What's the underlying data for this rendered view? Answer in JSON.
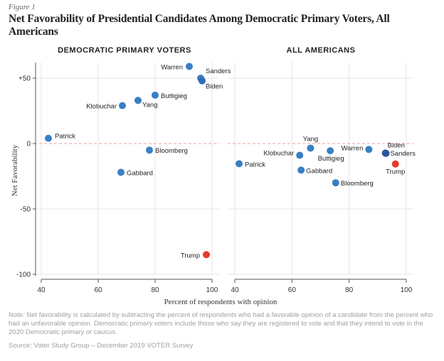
{
  "figure_label": "Figure 1",
  "title": "Net Favorability of Presidential Candidates Among Democratic Primary Voters, All Americans",
  "note": "Note: Net favorability is calculated by subtracting the percent of respondents who had a favorable opinion of a candidate from the percent who had an unfavorable opinion. Democratic primary voters include those who say they are registered to vote and that they intend to vote in the 2020 Democratic primary or caucus.",
  "source": "Source: Voter Study Group – December 2019 VOTER Survey",
  "colors": {
    "democrat": "#3a7fc4",
    "highlight": "#2a55a0",
    "trump": "#e53a2c",
    "zero_line": "#e8a09a"
  },
  "chart_data": [
    {
      "type": "scatter",
      "title": "DEMOCRATIC PRIMARY VOTERS",
      "xlabel": "Percent of respondents with opinion",
      "ylabel": "Net Favorability",
      "xlim": [
        40,
        100
      ],
      "ylim": [
        -100,
        60
      ],
      "xticks": [
        "40",
        "60",
        "80",
        "100"
      ],
      "yticks": [
        "+50",
        "0",
        "-50",
        "-100"
      ],
      "grid": true,
      "points": [
        {
          "name": "Warren",
          "x": 92,
          "y": 59
        },
        {
          "name": "Sanders",
          "x": 96,
          "y": 50
        },
        {
          "name": "Biden",
          "x": 96.5,
          "y": 48
        },
        {
          "name": "Buttigieg",
          "x": 80,
          "y": 37
        },
        {
          "name": "Yang",
          "x": 74,
          "y": 33
        },
        {
          "name": "Klobuchar",
          "x": 68.5,
          "y": 29
        },
        {
          "name": "Patrick",
          "x": 42.5,
          "y": 4
        },
        {
          "name": "Bloomberg",
          "x": 78,
          "y": -5
        },
        {
          "name": "Gabbard",
          "x": 68,
          "y": -22
        },
        {
          "name": "Trump",
          "x": 98,
          "y": -85
        }
      ]
    },
    {
      "type": "scatter",
      "title": "ALL AMERICANS",
      "xlabel": "Percent of respondents with opinion",
      "xlim": [
        40,
        100
      ],
      "ylim": [
        -100,
        60
      ],
      "xticks": [
        "40",
        "60",
        "80",
        "100"
      ],
      "grid": true,
      "points": [
        {
          "name": "Yang",
          "x": 66.5,
          "y": -3.5
        },
        {
          "name": "Klobuchar",
          "x": 62.7,
          "y": -9
        },
        {
          "name": "Buttigieg",
          "x": 73.4,
          "y": -5.5
        },
        {
          "name": "Warren",
          "x": 86.9,
          "y": -4.5
        },
        {
          "name": "Biden",
          "x": 92.7,
          "y": -7.3
        },
        {
          "name": "Sanders",
          "x": 92.9,
          "y": -7.5
        },
        {
          "name": "Trump",
          "x": 96.2,
          "y": -15.6
        },
        {
          "name": "Patrick",
          "x": 41.5,
          "y": -15.4
        },
        {
          "name": "Gabbard",
          "x": 63.2,
          "y": -20.3
        },
        {
          "name": "Bloomberg",
          "x": 75.3,
          "y": -30
        }
      ]
    }
  ]
}
